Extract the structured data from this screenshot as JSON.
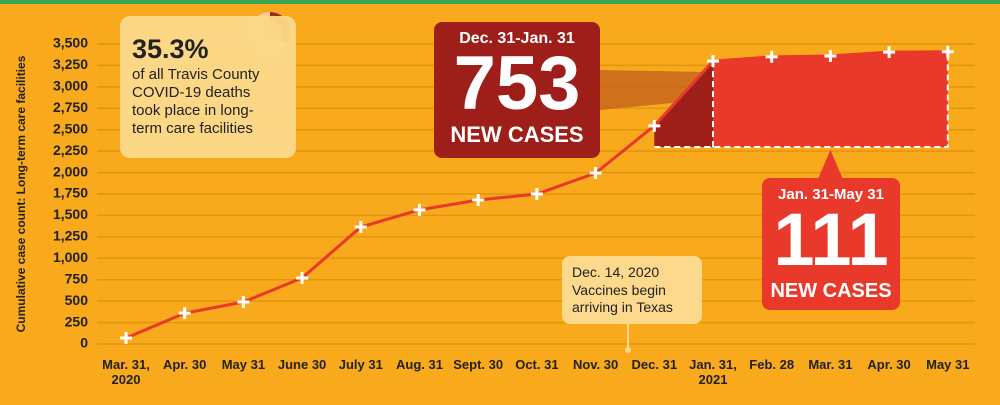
{
  "chart_data": {
    "type": "line",
    "y_label": "Cumulative case count: Long-term care facilities",
    "categories": [
      "Mar. 31, 2020",
      "Apr. 30",
      "May 31",
      "June 30",
      "July 31",
      "Aug. 31",
      "Sept. 30",
      "Oct. 31",
      "Nov. 30",
      "Dec. 31",
      "Jan. 31, 2021",
      "Feb. 28",
      "Mar. 31",
      "Apr. 30",
      "May 31"
    ],
    "values": [
      70,
      360,
      490,
      770,
      1365,
      1565,
      1680,
      1750,
      1995,
      2545,
      3300,
      3350,
      3360,
      3405,
      3410
    ],
    "color": "#e8392a",
    "ylim": [
      0,
      3500
    ],
    "yticks": [
      0,
      250,
      500,
      750,
      {
        "value": 1000,
        "label": "1,000"
      },
      {
        "value": 1250,
        "label": "1,250"
      },
      {
        "value": 1500,
        "label": "1,500"
      },
      {
        "value": 1750,
        "label": "1,750"
      },
      {
        "value": 2000,
        "label": "2,000"
      },
      {
        "value": 2250,
        "label": "2,250"
      },
      {
        "value": 2500,
        "label": "2,500"
      },
      {
        "value": 2750,
        "label": "2,750"
      },
      {
        "value": 3000,
        "label": "3,000"
      },
      {
        "value": 3250,
        "label": "3,250"
      },
      {
        "value": 3500,
        "label": "3,500"
      }
    ],
    "grid": true,
    "annotations": {
      "deaths_share": {
        "value": 35.3,
        "label": "35.3%",
        "text": "of all Travis County COVID-19 deaths took place in long-term care facilities"
      },
      "period_1": {
        "range": "Dec. 31-Jan. 31",
        "cases": 753,
        "unit": "NEW CASES"
      },
      "period_2": {
        "range": "Jan. 31-May 31",
        "cases": 111,
        "unit": "NEW CASES"
      },
      "vaccine": {
        "date": "Dec. 14, 2020",
        "text": "Vaccines begin arriving in Texas"
      }
    }
  }
}
